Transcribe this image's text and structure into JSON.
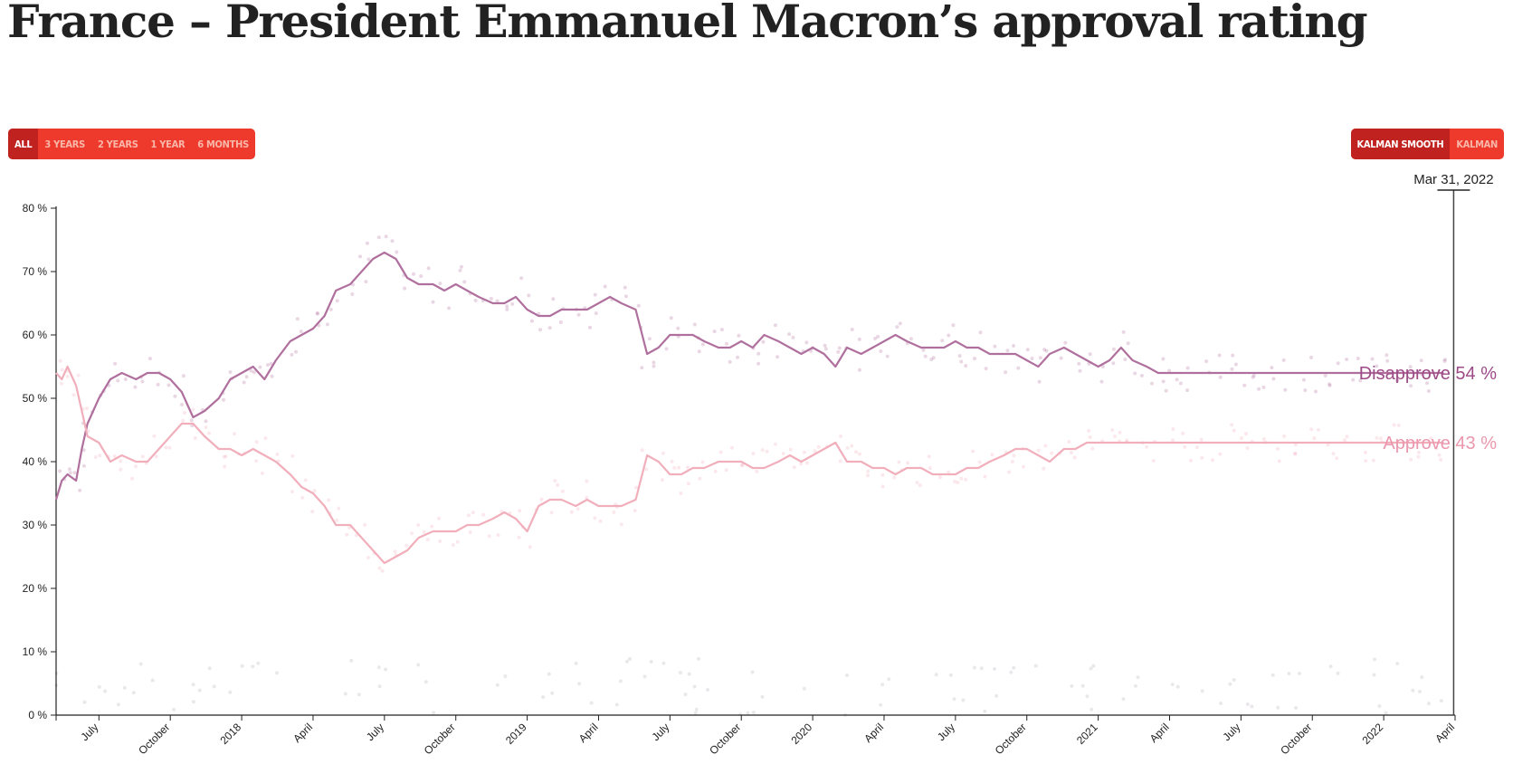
{
  "title": "France – President Emmanuel Macron’s approval rating",
  "range_buttons": [
    {
      "label": "ALL",
      "active": true
    },
    {
      "label": "3 YEARS",
      "active": false
    },
    {
      "label": "2 YEARS",
      "active": false
    },
    {
      "label": "1 YEAR",
      "active": false
    },
    {
      "label": "6 MONTHS",
      "active": false
    }
  ],
  "smoothing_buttons": [
    {
      "label": "KALMAN SMOOTH",
      "active": true
    },
    {
      "label": "KALMAN",
      "active": false
    }
  ],
  "colors": {
    "accent": "#ee3a2c",
    "accent_active": "#c0231f",
    "disapprove": "#b0709e",
    "approve": "#f1aebb",
    "disapprove_label": "#9d4a86",
    "approve_label": "#eb97ad"
  },
  "chart_data": {
    "type": "line",
    "title": "France – President Emmanuel Macron’s approval rating",
    "xlabel": "",
    "ylabel": "",
    "x_range": [
      2017.35,
      2022.25
    ],
    "ylim": [
      0,
      80
    ],
    "y_ticks": [
      0,
      10,
      20,
      30,
      40,
      50,
      60,
      70,
      80
    ],
    "y_tick_suffix": " %",
    "x_ticks": [
      {
        "x": 2017.5,
        "label": "July"
      },
      {
        "x": 2017.75,
        "label": "October"
      },
      {
        "x": 2018.0,
        "label": "2018"
      },
      {
        "x": 2018.25,
        "label": "April"
      },
      {
        "x": 2018.5,
        "label": "July"
      },
      {
        "x": 2018.75,
        "label": "October"
      },
      {
        "x": 2019.0,
        "label": "2019"
      },
      {
        "x": 2019.25,
        "label": "April"
      },
      {
        "x": 2019.5,
        "label": "July"
      },
      {
        "x": 2019.75,
        "label": "October"
      },
      {
        "x": 2020.0,
        "label": "2020"
      },
      {
        "x": 2020.25,
        "label": "April"
      },
      {
        "x": 2020.5,
        "label": "July"
      },
      {
        "x": 2020.75,
        "label": "October"
      },
      {
        "x": 2021.0,
        "label": "2021"
      },
      {
        "x": 2021.25,
        "label": "April"
      },
      {
        "x": 2021.5,
        "label": "July"
      },
      {
        "x": 2021.75,
        "label": "October"
      },
      {
        "x": 2022.0,
        "label": "2022"
      },
      {
        "x": 2022.25,
        "label": "April"
      }
    ],
    "current_date_label": "Mar 31, 2022",
    "current_date_x": 2022.245,
    "series": [
      {
        "name": "Disapprove",
        "end_label": "Disapprove",
        "end_value_text": "54 %",
        "color": "#b0709e",
        "x": [
          2017.35,
          2017.37,
          2017.39,
          2017.42,
          2017.44,
          2017.46,
          2017.5,
          2017.54,
          2017.58,
          2017.63,
          2017.67,
          2017.71,
          2017.75,
          2017.79,
          2017.83,
          2017.87,
          2017.92,
          2017.96,
          2018.0,
          2018.04,
          2018.08,
          2018.12,
          2018.17,
          2018.21,
          2018.25,
          2018.29,
          2018.33,
          2018.38,
          2018.42,
          2018.46,
          2018.5,
          2018.54,
          2018.58,
          2018.62,
          2018.67,
          2018.71,
          2018.75,
          2018.79,
          2018.83,
          2018.88,
          2018.92,
          2018.96,
          2019.0,
          2019.04,
          2019.08,
          2019.12,
          2019.17,
          2019.21,
          2019.25,
          2019.29,
          2019.33,
          2019.38,
          2019.42,
          2019.46,
          2019.5,
          2019.54,
          2019.58,
          2019.62,
          2019.67,
          2019.71,
          2019.75,
          2019.79,
          2019.83,
          2019.88,
          2019.92,
          2019.96,
          2020.0,
          2020.04,
          2020.08,
          2020.12,
          2020.17,
          2020.21,
          2020.25,
          2020.29,
          2020.33,
          2020.38,
          2020.42,
          2020.46,
          2020.5,
          2020.54,
          2020.58,
          2020.62,
          2020.67,
          2020.71,
          2020.75,
          2020.79,
          2020.83,
          2020.88,
          2020.92,
          2020.96,
          2021.0,
          2021.04,
          2021.08,
          2021.12,
          2021.17,
          2021.21,
          2021.25,
          2021.29,
          2021.33,
          2021.38,
          2021.42,
          2021.46,
          2021.5,
          2021.54,
          2021.58,
          2021.62,
          2021.67,
          2021.71,
          2021.75,
          2021.79,
          2021.83,
          2021.88,
          2021.92,
          2021.96,
          2022.0,
          2022.04,
          2022.08,
          2022.12,
          2022.17,
          2022.21
        ],
        "values": [
          34,
          37,
          38,
          37,
          42,
          46,
          50,
          53,
          54,
          53,
          54,
          54,
          53,
          51,
          47,
          48,
          50,
          53,
          54,
          55,
          53,
          56,
          59,
          60,
          61,
          63,
          67,
          68,
          70,
          72,
          73,
          72,
          69,
          68,
          68,
          67,
          68,
          67,
          66,
          65,
          65,
          66,
          64,
          63,
          63,
          64,
          64,
          64,
          65,
          66,
          65,
          64,
          57,
          58,
          60,
          60,
          60,
          59,
          58,
          58,
          59,
          58,
          60,
          59,
          58,
          57,
          58,
          57,
          55,
          58,
          57,
          58,
          59,
          60,
          59,
          58,
          58,
          58,
          59,
          58,
          58,
          57,
          57,
          57,
          56,
          55,
          57,
          58,
          57,
          56,
          55,
          56,
          58,
          56,
          55,
          54,
          54,
          54,
          54,
          54,
          54,
          54,
          54,
          54,
          54,
          54,
          54,
          54,
          54,
          54,
          54,
          54,
          54,
          54,
          54,
          54,
          54,
          54,
          54,
          54
        ]
      },
      {
        "name": "Approve",
        "end_label": "Approve",
        "end_value_text": "43 %",
        "color": "#f1aebb",
        "x": [
          2017.35,
          2017.37,
          2017.39,
          2017.42,
          2017.44,
          2017.46,
          2017.5,
          2017.54,
          2017.58,
          2017.63,
          2017.67,
          2017.71,
          2017.75,
          2017.79,
          2017.83,
          2017.87,
          2017.92,
          2017.96,
          2018.0,
          2018.04,
          2018.08,
          2018.12,
          2018.17,
          2018.21,
          2018.25,
          2018.29,
          2018.33,
          2018.38,
          2018.42,
          2018.46,
          2018.5,
          2018.54,
          2018.58,
          2018.62,
          2018.67,
          2018.71,
          2018.75,
          2018.79,
          2018.83,
          2018.88,
          2018.92,
          2018.96,
          2019.0,
          2019.04,
          2019.08,
          2019.12,
          2019.17,
          2019.21,
          2019.25,
          2019.29,
          2019.33,
          2019.38,
          2019.42,
          2019.46,
          2019.5,
          2019.54,
          2019.58,
          2019.62,
          2019.67,
          2019.71,
          2019.75,
          2019.79,
          2019.83,
          2019.88,
          2019.92,
          2019.96,
          2020.0,
          2020.04,
          2020.08,
          2020.12,
          2020.17,
          2020.21,
          2020.25,
          2020.29,
          2020.33,
          2020.38,
          2020.42,
          2020.46,
          2020.5,
          2020.54,
          2020.58,
          2020.62,
          2020.67,
          2020.71,
          2020.75,
          2020.79,
          2020.83,
          2020.88,
          2020.92,
          2020.96,
          2021.0,
          2021.04,
          2021.08,
          2021.12,
          2021.17,
          2021.21,
          2021.25,
          2021.29,
          2021.33,
          2021.38,
          2021.42,
          2021.46,
          2021.5,
          2021.54,
          2021.58,
          2021.62,
          2021.67,
          2021.71,
          2021.75,
          2021.79,
          2021.83,
          2021.88,
          2021.92,
          2021.96,
          2022.0,
          2022.04,
          2022.08,
          2022.12,
          2022.17,
          2022.21
        ],
        "values": [
          54,
          53,
          55,
          52,
          48,
          44,
          43,
          40,
          41,
          40,
          40,
          42,
          44,
          46,
          46,
          44,
          42,
          42,
          41,
          42,
          41,
          40,
          38,
          36,
          35,
          33,
          30,
          30,
          28,
          26,
          24,
          25,
          26,
          28,
          29,
          29,
          29,
          30,
          30,
          31,
          32,
          31,
          29,
          33,
          34,
          34,
          33,
          34,
          33,
          33,
          33,
          34,
          41,
          40,
          38,
          38,
          39,
          39,
          40,
          40,
          40,
          39,
          39,
          40,
          41,
          40,
          41,
          42,
          43,
          40,
          40,
          39,
          39,
          38,
          39,
          39,
          38,
          38,
          38,
          39,
          39,
          40,
          41,
          42,
          42,
          41,
          40,
          42,
          42,
          43,
          43,
          43,
          43,
          43,
          43,
          43,
          43,
          43,
          43,
          43,
          43,
          43,
          43,
          43,
          43,
          43,
          43,
          43,
          43,
          43,
          43,
          43,
          43,
          43,
          43,
          43,
          43,
          43,
          43,
          43
        ]
      }
    ]
  }
}
